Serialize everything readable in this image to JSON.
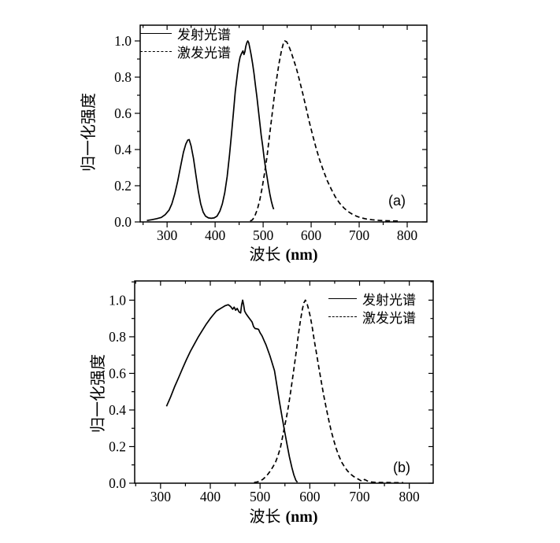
{
  "page": {
    "background": "#ffffff",
    "ink_color": "#000000"
  },
  "chart_data": [
    {
      "id": "a",
      "type": "line",
      "panel_label": "(a)",
      "title": "",
      "xlabel": "波长",
      "xlabel_unit": "(nm)",
      "ylabel": "归一化强度",
      "x_range": [
        244,
        841
      ],
      "y_range": [
        0,
        1.087
      ],
      "x_ticks": [
        300,
        400,
        500,
        600,
        700,
        800
      ],
      "x_minor_step": 50,
      "y_tick_values": [
        0,
        0.2,
        0.4,
        0.6,
        0.8,
        1.0
      ],
      "y_tick_labels": [
        "0.0",
        "0.2",
        "0.4",
        "0.6",
        "0.8",
        "1.0"
      ],
      "y_minor_step": 0.1,
      "grid": false,
      "legend_position": "top-left",
      "line_color": "#000000",
      "series": [
        {
          "name": "发射光谱",
          "style": "solid",
          "points": [
            [
              258,
              0.008
            ],
            [
              268,
              0.012
            ],
            [
              278,
              0.018
            ],
            [
              288,
              0.025
            ],
            [
              296,
              0.04
            ],
            [
              304,
              0.065
            ],
            [
              310,
              0.1
            ],
            [
              316,
              0.155
            ],
            [
              322,
              0.225
            ],
            [
              328,
              0.305
            ],
            [
              334,
              0.385
            ],
            [
              339,
              0.43
            ],
            [
              343,
              0.452
            ],
            [
              346,
              0.455
            ],
            [
              350,
              0.42
            ],
            [
              355,
              0.35
            ],
            [
              360,
              0.26
            ],
            [
              365,
              0.17
            ],
            [
              370,
              0.1
            ],
            [
              375,
              0.055
            ],
            [
              380,
              0.032
            ],
            [
              386,
              0.022
            ],
            [
              392,
              0.02
            ],
            [
              398,
              0.022
            ],
            [
              404,
              0.032
            ],
            [
              410,
              0.06
            ],
            [
              415,
              0.1
            ],
            [
              420,
              0.16
            ],
            [
              425,
              0.25
            ],
            [
              430,
              0.37
            ],
            [
              434,
              0.48
            ],
            [
              438,
              0.6
            ],
            [
              442,
              0.72
            ],
            [
              446,
              0.81
            ],
            [
              449,
              0.87
            ],
            [
              452,
              0.91
            ],
            [
              455,
              0.93
            ],
            [
              458,
              0.945
            ],
            [
              460,
              0.925
            ],
            [
              462,
              0.94
            ],
            [
              464,
              0.97
            ],
            [
              466,
              0.99
            ],
            [
              468,
              1.0
            ],
            [
              470,
              0.99
            ],
            [
              472,
              0.965
            ],
            [
              475,
              0.925
            ],
            [
              478,
              0.875
            ],
            [
              481,
              0.82
            ],
            [
              484,
              0.755
            ],
            [
              487,
              0.69
            ],
            [
              490,
              0.62
            ],
            [
              493,
              0.55
            ],
            [
              496,
              0.48
            ],
            [
              499,
              0.42
            ],
            [
              502,
              0.355
            ],
            [
              505,
              0.3
            ],
            [
              508,
              0.25
            ],
            [
              511,
              0.2
            ],
            [
              514,
              0.155
            ],
            [
              517,
              0.115
            ],
            [
              520,
              0.085
            ],
            [
              522,
              0.07
            ]
          ]
        },
        {
          "name": "激发光谱",
          "style": "dashed",
          "points": [
            [
              473,
              0.005
            ],
            [
              478,
              0.012
            ],
            [
              483,
              0.035
            ],
            [
              488,
              0.07
            ],
            [
              493,
              0.12
            ],
            [
              498,
              0.19
            ],
            [
              503,
              0.27
            ],
            [
              508,
              0.36
            ],
            [
              513,
              0.47
            ],
            [
              518,
              0.58
            ],
            [
              523,
              0.69
            ],
            [
              528,
              0.79
            ],
            [
              533,
              0.875
            ],
            [
              538,
              0.945
            ],
            [
              542,
              0.985
            ],
            [
              545,
              1.0
            ],
            [
              549,
              0.995
            ],
            [
              553,
              0.975
            ],
            [
              558,
              0.94
            ],
            [
              563,
              0.9
            ],
            [
              569,
              0.85
            ],
            [
              575,
              0.79
            ],
            [
              582,
              0.715
            ],
            [
              589,
              0.635
            ],
            [
              596,
              0.555
            ],
            [
              603,
              0.48
            ],
            [
              610,
              0.41
            ],
            [
              618,
              0.34
            ],
            [
              626,
              0.28
            ],
            [
              634,
              0.225
            ],
            [
              642,
              0.18
            ],
            [
              650,
              0.14
            ],
            [
              659,
              0.105
            ],
            [
              668,
              0.078
            ],
            [
              677,
              0.057
            ],
            [
              686,
              0.042
            ],
            [
              695,
              0.031
            ],
            [
              705,
              0.022
            ],
            [
              715,
              0.016
            ],
            [
              726,
              0.012
            ],
            [
              738,
              0.009
            ],
            [
              750,
              0.007
            ],
            [
              763,
              0.006
            ],
            [
              775,
              0.005
            ],
            [
              786,
              0.005
            ]
          ]
        }
      ]
    },
    {
      "id": "b",
      "type": "line",
      "panel_label": "(b)",
      "title": "",
      "xlabel": "波长",
      "xlabel_unit": "(nm)",
      "ylabel": "归一化强度",
      "x_range": [
        248,
        848
      ],
      "y_range": [
        0,
        1.105
      ],
      "x_ticks": [
        300,
        400,
        500,
        600,
        700,
        800
      ],
      "x_minor_step": 50,
      "y_tick_values": [
        0,
        0.2,
        0.4,
        0.6,
        0.8,
        1.0
      ],
      "y_tick_labels": [
        "0.0",
        "0.2",
        "0.4",
        "0.6",
        "0.8",
        "1.0"
      ],
      "y_minor_step": 0.1,
      "grid": false,
      "legend_position": "top-right",
      "line_color": "#000000",
      "series": [
        {
          "name": "发射光谱",
          "style": "solid",
          "points": [
            [
              312,
              0.42
            ],
            [
              320,
              0.47
            ],
            [
              328,
              0.525
            ],
            [
              336,
              0.575
            ],
            [
              344,
              0.625
            ],
            [
              352,
              0.675
            ],
            [
              360,
              0.72
            ],
            [
              368,
              0.76
            ],
            [
              376,
              0.8
            ],
            [
              384,
              0.835
            ],
            [
              392,
              0.87
            ],
            [
              400,
              0.9
            ],
            [
              406,
              0.92
            ],
            [
              412,
              0.94
            ],
            [
              418,
              0.95
            ],
            [
              424,
              0.96
            ],
            [
              430,
              0.97
            ],
            [
              436,
              0.975
            ],
            [
              441,
              0.965
            ],
            [
              445,
              0.95
            ],
            [
              448,
              0.962
            ],
            [
              451,
              0.945
            ],
            [
              454,
              0.955
            ],
            [
              458,
              0.935
            ],
            [
              461,
              0.93
            ],
            [
              463,
              0.975
            ],
            [
              465,
              1.0
            ],
            [
              467,
              0.975
            ],
            [
              469,
              0.94
            ],
            [
              472,
              0.925
            ],
            [
              476,
              0.91
            ],
            [
              480,
              0.895
            ],
            [
              484,
              0.88
            ],
            [
              487,
              0.855
            ],
            [
              490,
              0.845
            ],
            [
              494,
              0.843
            ],
            [
              497,
              0.84
            ],
            [
              500,
              0.822
            ],
            [
              504,
              0.805
            ],
            [
              508,
              0.78
            ],
            [
              512,
              0.755
            ],
            [
              516,
              0.725
            ],
            [
              520,
              0.695
            ],
            [
              524,
              0.66
            ],
            [
              529,
              0.615
            ],
            [
              534,
              0.53
            ],
            [
              539,
              0.445
            ],
            [
              544,
              0.365
            ],
            [
              549,
              0.29
            ],
            [
              554,
              0.215
            ],
            [
              559,
              0.145
            ],
            [
              564,
              0.085
            ],
            [
              568,
              0.045
            ],
            [
              572,
              0.015
            ],
            [
              575,
              0.005
            ]
          ]
        },
        {
          "name": "激发光谱",
          "style": "dashed",
          "points": [
            [
              488,
              0.004
            ],
            [
              494,
              0.007
            ],
            [
              500,
              0.012
            ],
            [
              506,
              0.022
            ],
            [
              511,
              0.035
            ],
            [
              516,
              0.05
            ],
            [
              521,
              0.068
            ],
            [
              526,
              0.09
            ],
            [
              531,
              0.115
            ],
            [
              536,
              0.15
            ],
            [
              541,
              0.195
            ],
            [
              545,
              0.25
            ],
            [
              549,
              0.305
            ],
            [
              553,
              0.36
            ],
            [
              557,
              0.42
            ],
            [
              561,
              0.49
            ],
            [
              565,
              0.565
            ],
            [
              569,
              0.645
            ],
            [
              573,
              0.725
            ],
            [
              577,
              0.81
            ],
            [
              581,
              0.885
            ],
            [
              585,
              0.95
            ],
            [
              588,
              0.985
            ],
            [
              591,
              1.0
            ],
            [
              594,
              0.985
            ],
            [
              597,
              0.955
            ],
            [
              601,
              0.91
            ],
            [
              605,
              0.85
            ],
            [
              609,
              0.78
            ],
            [
              613,
              0.715
            ],
            [
              618,
              0.635
            ],
            [
              623,
              0.555
            ],
            [
              628,
              0.48
            ],
            [
              633,
              0.41
            ],
            [
              638,
              0.345
            ],
            [
              643,
              0.285
            ],
            [
              648,
              0.235
            ],
            [
              653,
              0.19
            ],
            [
              658,
              0.152
            ],
            [
              664,
              0.115
            ],
            [
              670,
              0.088
            ],
            [
              676,
              0.066
            ],
            [
              682,
              0.05
            ],
            [
              688,
              0.037
            ],
            [
              694,
              0.027
            ],
            [
              700,
              0.018
            ],
            [
              705,
              0.01
            ],
            [
              710,
              0.02
            ],
            [
              716,
              0.012
            ],
            [
              722,
              0.007
            ],
            [
              730,
              0.005
            ],
            [
              740,
              0.004
            ],
            [
              752,
              0.004
            ],
            [
              765,
              0.003
            ],
            [
              778,
              0.003
            ],
            [
              788,
              0.003
            ]
          ]
        }
      ]
    }
  ]
}
